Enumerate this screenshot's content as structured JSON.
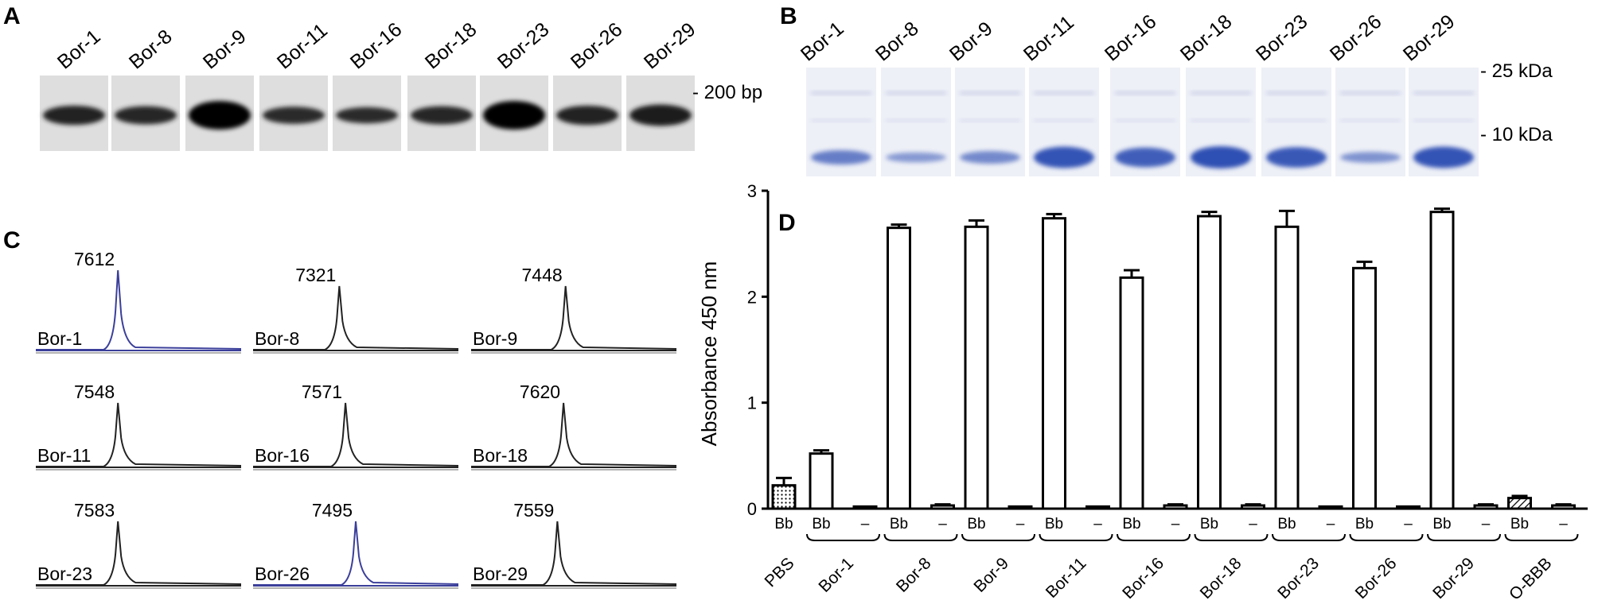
{
  "panels": {
    "A": {
      "label": "A",
      "lanes": [
        "Bor-1",
        "Bor-8",
        "Bor-9",
        "Bor-11",
        "Bor-16",
        "Bor-18",
        "Bor-23",
        "Bor-26",
        "Bor-29"
      ],
      "marker": "- 200 bp",
      "band_intensity": [
        0.55,
        0.5,
        1.0,
        0.45,
        0.4,
        0.5,
        1.0,
        0.55,
        0.65
      ]
    },
    "B": {
      "label": "B",
      "lanes": [
        "Bor-1",
        "Bor-8",
        "Bor-9",
        "Bor-11",
        "Bor-16",
        "Bor-18",
        "Bor-23",
        "Bor-26",
        "Bor-29"
      ],
      "markers": [
        "- 25 kDa",
        "- 10 kDa"
      ],
      "band_intensity": [
        0.55,
        0.3,
        0.45,
        0.95,
        0.85,
        1.0,
        0.9,
        0.35,
        0.95
      ],
      "color": "#2f4fb3"
    },
    "C": {
      "label": "C",
      "spectra": [
        {
          "sample": "Bor-1",
          "peak": "7612",
          "color": "#3b3f9a"
        },
        {
          "sample": "Bor-8",
          "peak": "7321",
          "color": "#222222"
        },
        {
          "sample": "Bor-9",
          "peak": "7448",
          "color": "#222222"
        },
        {
          "sample": "Bor-11",
          "peak": "7548",
          "color": "#222222"
        },
        {
          "sample": "Bor-16",
          "peak": "7571",
          "color": "#222222"
        },
        {
          "sample": "Bor-18",
          "peak": "7620",
          "color": "#222222"
        },
        {
          "sample": "Bor-23",
          "peak": "7583",
          "color": "#222222"
        },
        {
          "sample": "Bor-26",
          "peak": "7495",
          "color": "#3b3f9a"
        },
        {
          "sample": "Bor-29",
          "peak": "7559",
          "color": "#222222"
        }
      ]
    },
    "D": {
      "label": "D"
    }
  },
  "chart_data": {
    "type": "bar",
    "ylabel": "Absorbance 450 nm",
    "ylim": [
      0,
      3
    ],
    "yticks": [
      "0",
      "1",
      "2",
      "3"
    ],
    "groups": [
      "PBS",
      "Bor-1",
      "Bor-8",
      "Bor-9",
      "Bor-11",
      "Bor-16",
      "Bor-18",
      "Bor-23",
      "Bor-26",
      "Bor-29",
      "O-BBB"
    ],
    "bars": [
      {
        "group": "PBS",
        "label": "Bb",
        "value": 0.22,
        "error": 0.07,
        "pattern": "dotted"
      },
      {
        "group": "Bor-1",
        "label": "Bb",
        "value": 0.52,
        "error": 0.03,
        "pattern": "open"
      },
      {
        "group": "Bor-1",
        "label": "–",
        "value": 0.02,
        "error": 0.0,
        "pattern": "open"
      },
      {
        "group": "Bor-8",
        "label": "Bb",
        "value": 2.65,
        "error": 0.03,
        "pattern": "open"
      },
      {
        "group": "Bor-8",
        "label": "–",
        "value": 0.03,
        "error": 0.01,
        "pattern": "open"
      },
      {
        "group": "Bor-9",
        "label": "Bb",
        "value": 2.66,
        "error": 0.06,
        "pattern": "open"
      },
      {
        "group": "Bor-9",
        "label": "–",
        "value": 0.02,
        "error": 0.0,
        "pattern": "open"
      },
      {
        "group": "Bor-11",
        "label": "Bb",
        "value": 2.74,
        "error": 0.04,
        "pattern": "open"
      },
      {
        "group": "Bor-11",
        "label": "–",
        "value": 0.02,
        "error": 0.0,
        "pattern": "open"
      },
      {
        "group": "Bor-16",
        "label": "Bb",
        "value": 2.18,
        "error": 0.07,
        "pattern": "open"
      },
      {
        "group": "Bor-16",
        "label": "–",
        "value": 0.03,
        "error": 0.01,
        "pattern": "open"
      },
      {
        "group": "Bor-18",
        "label": "Bb",
        "value": 2.76,
        "error": 0.04,
        "pattern": "open"
      },
      {
        "group": "Bor-18",
        "label": "–",
        "value": 0.03,
        "error": 0.01,
        "pattern": "open"
      },
      {
        "group": "Bor-23",
        "label": "Bb",
        "value": 2.66,
        "error": 0.15,
        "pattern": "open"
      },
      {
        "group": "Bor-23",
        "label": "–",
        "value": 0.02,
        "error": 0.0,
        "pattern": "open"
      },
      {
        "group": "Bor-26",
        "label": "Bb",
        "value": 2.27,
        "error": 0.06,
        "pattern": "open"
      },
      {
        "group": "Bor-26",
        "label": "–",
        "value": 0.02,
        "error": 0.0,
        "pattern": "open"
      },
      {
        "group": "Bor-29",
        "label": "Bb",
        "value": 2.8,
        "error": 0.03,
        "pattern": "open"
      },
      {
        "group": "Bor-29",
        "label": "–",
        "value": 0.03,
        "error": 0.01,
        "pattern": "open"
      },
      {
        "group": "O-BBB",
        "label": "Bb",
        "value": 0.1,
        "error": 0.02,
        "pattern": "hatched"
      },
      {
        "group": "O-BBB",
        "label": "–",
        "value": 0.03,
        "error": 0.01,
        "pattern": "open"
      }
    ]
  }
}
